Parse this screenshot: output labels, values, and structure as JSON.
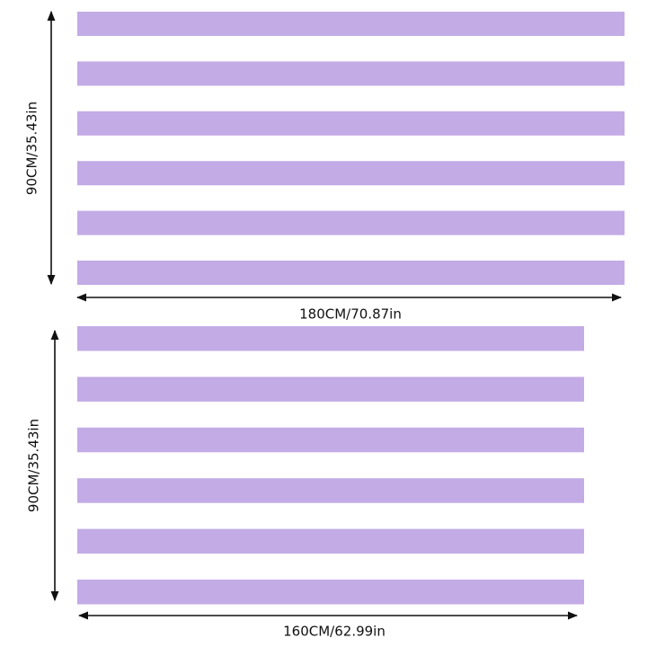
{
  "panels": [
    {
      "height_label": "90CM/35.43in",
      "width_label": "180CM/70.87in"
    },
    {
      "height_label": "90CM/35.43in",
      "width_label": "160CM/62.99in"
    }
  ]
}
